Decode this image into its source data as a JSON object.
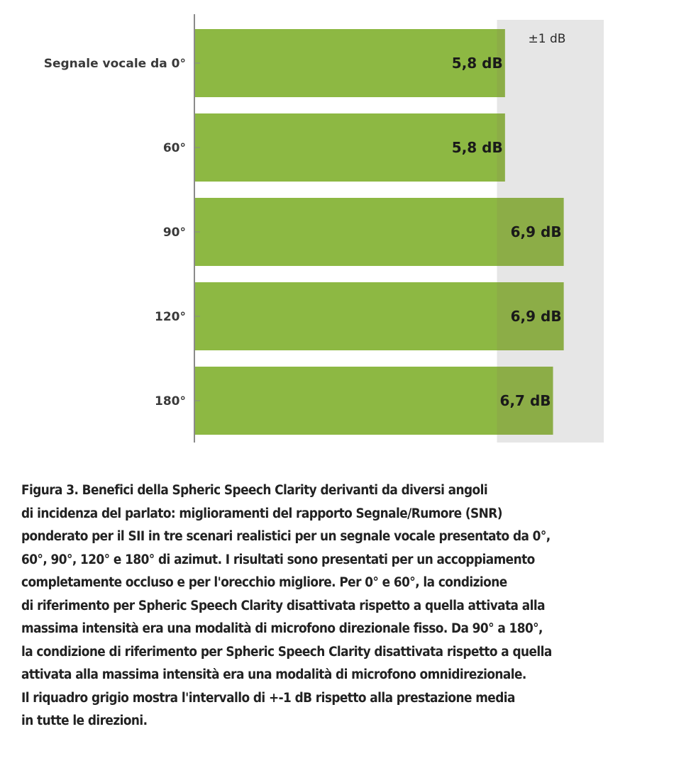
{
  "chart_data": {
    "type": "bar",
    "orientation": "horizontal",
    "categories": [
      "Segnale vocale da 0°",
      "60°",
      "90°",
      "120°",
      "180°"
    ],
    "values": [
      5.8,
      5.8,
      6.9,
      6.9,
      6.7
    ],
    "value_labels": [
      "5,8 dB",
      "5,8 dB",
      "6,9 dB",
      "6,9 dB",
      "6,7 dB"
    ],
    "unit": "dB",
    "band": {
      "label": "±1 dB",
      "from": 5.65,
      "to": 7.65
    },
    "xlim": [
      0,
      9
    ],
    "title": "",
    "xlabel": "",
    "ylabel": "",
    "grid": false
  },
  "colors": {
    "bar": "#8db843",
    "bar_overlap": "#8cad47",
    "band": "#e6e6e6",
    "axis": "#8a8a8a"
  },
  "caption": {
    "lines": [
      "Figura 3. Benefici della Spheric Speech Clarity derivanti da diversi angoli",
      "di incidenza del parlato: miglioramenti del rapporto Segnale/Rumore (SNR)",
      "ponderato per il SII in tre scenari realistici per un segnale vocale presentato da 0°,",
      "60°, 90°, 120° e 180° di azimut. I risultati sono presentati per un accoppiamento",
      "completamente occluso e per l'orecchio migliore. Per 0° e 60°, la condizione",
      "di riferimento per Spheric Speech Clarity disattivata rispetto a quella attivata alla",
      "massima intensità era una modalità di microfono direzionale fisso. Da 90° a 180°,",
      "la condizione di riferimento per Spheric Speech Clarity disattivata rispetto a quella",
      "attivata alla massima intensità era una modalità di microfono omnidirezionale.",
      "Il riquadro grigio mostra l'intervallo di +-1 dB rispetto alla prestazione media",
      "in tutte le direzioni."
    ]
  }
}
